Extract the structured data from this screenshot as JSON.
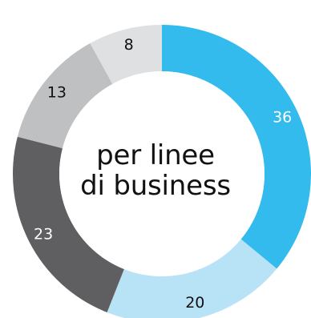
{
  "chart_data": {
    "type": "pie",
    "donut": true,
    "center_label_lines": [
      "per linee",
      "di business"
    ],
    "slices": [
      {
        "label": "36",
        "value": 36,
        "color": "#33bbee",
        "text_color": "#ffffff"
      },
      {
        "label": "20",
        "value": 20,
        "color": "#b8e2f6",
        "text_color": "#111111"
      },
      {
        "label": "23",
        "value": 23,
        "color": "#5f5f61",
        "text_color": "#ffffff"
      },
      {
        "label": "13",
        "value": 13,
        "color": "#bfc0c2",
        "text_color": "#111111"
      },
      {
        "label": "8",
        "value": 8,
        "color": "#dfe0e1",
        "text_color": "#111111"
      }
    ],
    "start": "top",
    "direction": "clockwise",
    "legend": "none"
  }
}
